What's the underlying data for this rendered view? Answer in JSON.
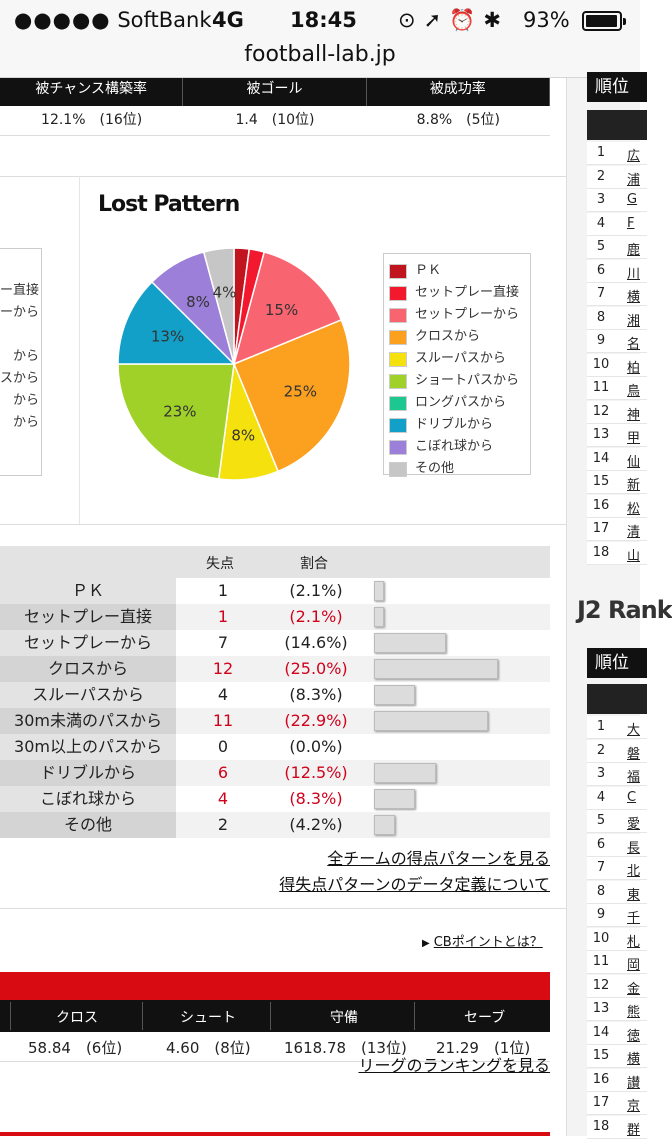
{
  "status_bar": {
    "carrier": "SoftBank",
    "network": "4G",
    "time": "18:45",
    "battery": "93%"
  },
  "url": "football-lab.jp",
  "top_table": {
    "headers": [
      "被チャンス構築率",
      "被ゴール",
      "被成功率"
    ],
    "values": [
      "12.1%　(16位)",
      "1.4　(10位)",
      "8.8%　(5位)"
    ]
  },
  "left_partial_legend": [
    "ー直接",
    "ーから",
    "から",
    "スから",
    "から",
    "から"
  ],
  "chart_data": {
    "type": "pie",
    "title": "Lost Pattern",
    "slices": [
      {
        "label": "ＰＫ",
        "value": 2.1,
        "color": "#c0141f",
        "display": ""
      },
      {
        "label": "セットプレー直接",
        "value": 2.1,
        "color": "#f2182e",
        "display": ""
      },
      {
        "label": "セットプレーから",
        "value": 14.6,
        "color": "#f86470",
        "display": "15%"
      },
      {
        "label": "クロスから",
        "value": 25.0,
        "color": "#fba01f",
        "display": "25%"
      },
      {
        "label": "スルーパスから",
        "value": 8.3,
        "color": "#f4e10d",
        "display": "8%"
      },
      {
        "label": "ショートパスから",
        "value": 22.9,
        "color": "#a0d128",
        "display": "23%"
      },
      {
        "label": "ロングパスから",
        "value": 0.0,
        "color": "#1cc88f",
        "display": ""
      },
      {
        "label": "ドリブルから",
        "value": 12.5,
        "color": "#13a0c8",
        "display": "13%"
      },
      {
        "label": "こぼれ球から",
        "value": 8.3,
        "color": "#9b7fd8",
        "display": "8%"
      },
      {
        "label": "その他",
        "value": 4.2,
        "color": "#c6c6c6",
        "display": "4%"
      }
    ]
  },
  "stats": {
    "header_count": "失点",
    "header_ratio": "割合",
    "rows": [
      {
        "label": "ＰＫ",
        "count": "1",
        "ratio": "(2.1%)",
        "pct": 2.1,
        "highlight": false
      },
      {
        "label": "セットプレー直接",
        "count": "1",
        "ratio": "(2.1%)",
        "pct": 2.1,
        "highlight": true
      },
      {
        "label": "セットプレーから",
        "count": "7",
        "ratio": "(14.6%)",
        "pct": 14.6,
        "highlight": false
      },
      {
        "label": "クロスから",
        "count": "12",
        "ratio": "(25.0%)",
        "pct": 25.0,
        "highlight": true
      },
      {
        "label": "スルーパスから",
        "count": "4",
        "ratio": "(8.3%)",
        "pct": 8.3,
        "highlight": false
      },
      {
        "label": "30m未満のパスから",
        "count": "11",
        "ratio": "(22.9%)",
        "pct": 22.9,
        "highlight": true
      },
      {
        "label": "30m以上のパスから",
        "count": "0",
        "ratio": "(0.0%)",
        "pct": 0.0,
        "highlight": false
      },
      {
        "label": "ドリブルから",
        "count": "6",
        "ratio": "(12.5%)",
        "pct": 12.5,
        "highlight": true
      },
      {
        "label": "こぼれ球から",
        "count": "4",
        "ratio": "(8.3%)",
        "pct": 8.3,
        "highlight": true
      },
      {
        "label": "その他",
        "count": "2",
        "ratio": "(4.2%)",
        "pct": 4.2,
        "highlight": false
      }
    ]
  },
  "links": {
    "all_teams": "全チームの得点パターンを見る",
    "definition": "得失点パターンのデータ定義について",
    "cb_point": "CBポイントとは？",
    "league_ranking": "リーグのランキングを見る"
  },
  "cb_table": {
    "headers": [
      "クロス",
      "シュート",
      "守備",
      "セーブ"
    ],
    "values": [
      "58.84　(6位)",
      "4.60　(8位)",
      "1618.78　(13位)",
      "21.29　(1位)"
    ]
  },
  "sidebar": {
    "rank_label": "順位",
    "j2_title": "J2 Rank",
    "j1_ranks": [
      {
        "n": "1",
        "name": "広"
      },
      {
        "n": "2",
        "name": "浦"
      },
      {
        "n": "3",
        "name": "G"
      },
      {
        "n": "4",
        "name": "F"
      },
      {
        "n": "5",
        "name": "鹿"
      },
      {
        "n": "6",
        "name": "川"
      },
      {
        "n": "7",
        "name": "横"
      },
      {
        "n": "8",
        "name": "湘"
      },
      {
        "n": "9",
        "name": "名"
      },
      {
        "n": "10",
        "name": "柏"
      },
      {
        "n": "11",
        "name": "鳥"
      },
      {
        "n": "12",
        "name": "神"
      },
      {
        "n": "13",
        "name": "甲"
      },
      {
        "n": "14",
        "name": "仙"
      },
      {
        "n": "15",
        "name": "新"
      },
      {
        "n": "16",
        "name": "松"
      },
      {
        "n": "17",
        "name": "清"
      },
      {
        "n": "18",
        "name": "山"
      }
    ],
    "j2_ranks": [
      {
        "n": "1",
        "name": "大"
      },
      {
        "n": "2",
        "name": "磐"
      },
      {
        "n": "3",
        "name": "福"
      },
      {
        "n": "4",
        "name": "C"
      },
      {
        "n": "5",
        "name": "愛"
      },
      {
        "n": "6",
        "name": "長"
      },
      {
        "n": "7",
        "name": "北"
      },
      {
        "n": "8",
        "name": "東"
      },
      {
        "n": "9",
        "name": "千"
      },
      {
        "n": "10",
        "name": "札"
      },
      {
        "n": "11",
        "name": "岡"
      },
      {
        "n": "12",
        "name": "金"
      },
      {
        "n": "13",
        "name": "熊"
      },
      {
        "n": "14",
        "name": "徳"
      },
      {
        "n": "15",
        "name": "横"
      },
      {
        "n": "16",
        "name": "讃"
      },
      {
        "n": "17",
        "name": "京"
      },
      {
        "n": "18",
        "name": "群"
      }
    ]
  }
}
